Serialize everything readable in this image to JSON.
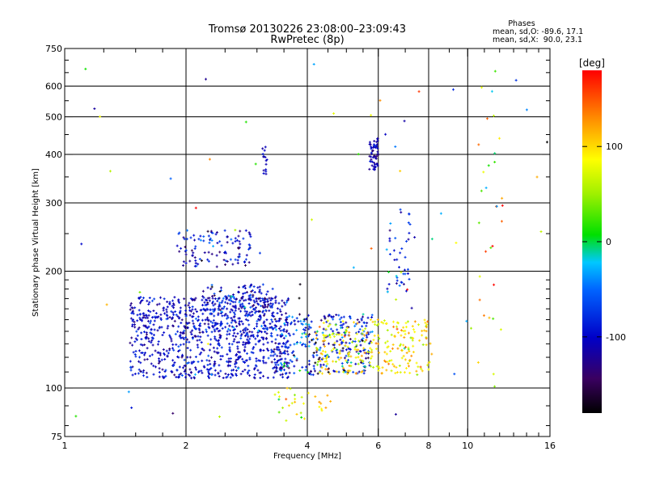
{
  "chart_data": {
    "type": "scatter",
    "title": "Tromsø 20130226 23:08:00–23:09:43",
    "subtitle": "RwPretec (8p)",
    "xlabel": "Frequency [MHz]",
    "ylabel": "Stationary phase Virtual Height [km]",
    "x_scale": "log",
    "y_scale": "log",
    "xlim": [
      1,
      16
    ],
    "ylim": [
      75,
      750
    ],
    "x_ticks": [
      1,
      2,
      4,
      6,
      8,
      10,
      16
    ],
    "x_tick_labels": [
      "1",
      "2",
      "4",
      "6",
      "8",
      "10",
      "16"
    ],
    "x_minor_ticks": [
      1.25,
      1.5,
      1.75,
      2.5,
      3,
      3.5,
      4.5,
      5,
      5.5,
      7,
      9,
      11,
      12,
      13,
      14,
      15
    ],
    "y_ticks": [
      75,
      100,
      200,
      300,
      400,
      500,
      600,
      750
    ],
    "y_tick_labels": [
      "75",
      "100",
      "200",
      "300",
      "400",
      "500",
      "600",
      "750"
    ],
    "y_minor_ticks": [
      80,
      90,
      110,
      120,
      130,
      140,
      150,
      160,
      170,
      180,
      190,
      250,
      350,
      450,
      550,
      650,
      700
    ],
    "grid_x": [
      2,
      4,
      6,
      8,
      10
    ],
    "grid_y": [
      100,
      200,
      300,
      400,
      500,
      600
    ],
    "stats": {
      "heading": "Phases",
      "line_o": "mean, sd,O: -89.6, 17.1",
      "line_x": "mean, sd,X:  90.0, 23.1"
    },
    "colorbar": {
      "label": "[deg]",
      "range": [
        -180,
        180
      ],
      "ticks": [
        100,
        0,
        -100
      ],
      "tick_labels": [
        "100",
        "0",
        "-100"
      ]
    },
    "series": [
      {
        "kind": "cluster",
        "count": 900,
        "x_range": [
          1.45,
          3.6
        ],
        "y_range": [
          106,
          172
        ],
        "phase": -100,
        "phase_sd": 18
      },
      {
        "kind": "cluster",
        "count": 180,
        "x_range": [
          2.2,
          3.3
        ],
        "y_range": [
          140,
          185
        ],
        "phase": -95,
        "phase_sd": 30
      },
      {
        "kind": "cluster",
        "count": 110,
        "x_range": [
          1.9,
          2.9
        ],
        "y_range": [
          205,
          255
        ],
        "phase": -100,
        "phase_sd": 25
      },
      {
        "kind": "cluster",
        "count": 320,
        "x_range": [
          3.3,
          5.8
        ],
        "y_range": [
          108,
          155
        ],
        "phase": -85,
        "phase_sd": 45
      },
      {
        "kind": "cluster",
        "count": 260,
        "x_range": [
          4.2,
          8.3
        ],
        "y_range": [
          108,
          150
        ],
        "phase": 95,
        "phase_sd": 25
      },
      {
        "kind": "cluster",
        "count": 60,
        "x_range": [
          5.7,
          6.0
        ],
        "y_range": [
          365,
          440
        ],
        "phase": -110,
        "phase_sd": 15
      },
      {
        "kind": "cluster",
        "count": 15,
        "x_range": [
          3.08,
          3.18
        ],
        "y_range": [
          355,
          420
        ],
        "phase": -105,
        "phase_sd": 15
      },
      {
        "kind": "cluster",
        "count": 40,
        "x_range": [
          6.3,
          7.2
        ],
        "y_range": [
          175,
          290
        ],
        "phase": -90,
        "phase_sd": 40
      },
      {
        "kind": "cluster",
        "count": 30,
        "x_range": [
          3.3,
          4.6
        ],
        "y_range": [
          82,
          100
        ],
        "phase": 90,
        "phase_sd": 35
      },
      {
        "kind": "cluster",
        "count": 28,
        "x_range": [
          10.6,
          12.2
        ],
        "y_range": [
          100,
          600
        ],
        "phase": 60,
        "phase_sd": 90
      },
      {
        "kind": "cluster",
        "count": 70,
        "x_range": [
          1.0,
          16.0
        ],
        "y_range": [
          76,
          690
        ],
        "phase": 20,
        "phase_sd": 110
      }
    ]
  }
}
